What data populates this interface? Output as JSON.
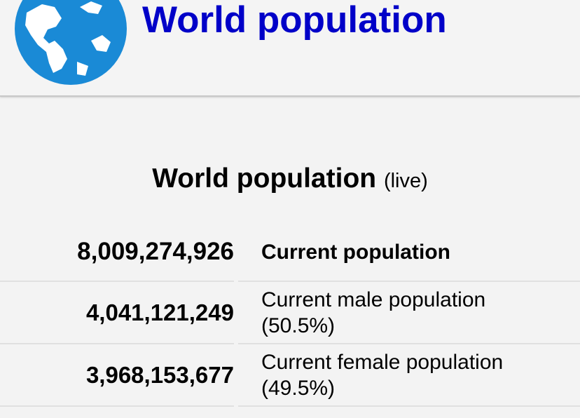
{
  "header": {
    "title": "World population"
  },
  "section": {
    "title": "World population",
    "subtitle": "(live)",
    "rows": [
      {
        "value": "8,009,274,926",
        "label": "Current population"
      },
      {
        "value": "4,041,121,249",
        "label": "Current male population (50.5%)"
      },
      {
        "value": "3,968,153,677",
        "label": "Current female population (49.5%)"
      }
    ]
  }
}
